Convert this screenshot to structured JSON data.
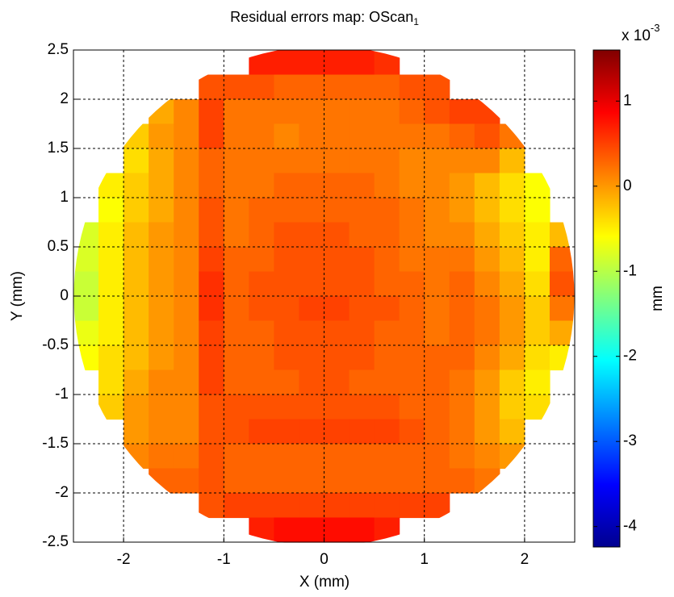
{
  "chart_data": {
    "type": "heatmap",
    "title": "Residual errors map: OScan",
    "title_subscript": "1",
    "xlabel": "X (mm)",
    "ylabel": "Y (mm)",
    "xlim": [
      -2.5,
      2.5
    ],
    "ylim": [
      -2.5,
      2.5
    ],
    "xticks": [
      -2,
      -1,
      0,
      1,
      2
    ],
    "yticks": [
      -2.5,
      -2,
      -1.5,
      -1,
      -0.5,
      0,
      0.5,
      1,
      1.5,
      2,
      2.5
    ],
    "grid": true,
    "colorbar": {
      "label": "mm",
      "multiplier": "x 10",
      "exponent": "-3",
      "clim": [
        -4.24,
        1.6
      ],
      "ticks": [
        -4,
        -3,
        -2,
        -1,
        0,
        1
      ],
      "colormap": "jet"
    },
    "z": [
      [
        null,
        null,
        null,
        null,
        null,
        null,
        null,
        0.7,
        0.7,
        0.7,
        0.7,
        0.7,
        0.6,
        null,
        null,
        null,
        null,
        null,
        null,
        null
      ],
      [
        null,
        null,
        null,
        null,
        null,
        0.4,
        0.4,
        0.4,
        0.3,
        0.3,
        0.3,
        0.3,
        0.3,
        0.4,
        0.4,
        null,
        null,
        null,
        null,
        null
      ],
      [
        null,
        null,
        null,
        -0.1,
        0.1,
        0.5,
        0.2,
        0.2,
        0.2,
        0.2,
        0.2,
        0.2,
        0.2,
        0.3,
        0.4,
        0.5,
        0.5,
        null,
        null,
        null
      ],
      [
        null,
        null,
        -0.3,
        0,
        0.1,
        0.5,
        0.2,
        0.2,
        0.1,
        0.2,
        0.2,
        0.2,
        0.2,
        0.2,
        0.2,
        0.3,
        0.4,
        0.2,
        null,
        null
      ],
      [
        null,
        null,
        -0.4,
        -0.1,
        0.1,
        0.3,
        0.2,
        0.2,
        0.2,
        0.2,
        0.2,
        0.2,
        0.2,
        0.1,
        0.1,
        0.1,
        0.1,
        -0.2,
        null,
        null
      ],
      [
        null,
        -0.5,
        -0.3,
        -0.1,
        0.1,
        0.3,
        0.2,
        0.2,
        0.3,
        0.3,
        0.3,
        0.3,
        0.2,
        0.1,
        0.1,
        0,
        -0.2,
        -0.4,
        -0.6,
        null
      ],
      [
        null,
        -0.6,
        -0.3,
        -0.1,
        0.1,
        0.4,
        0.2,
        0.3,
        0.3,
        0.3,
        0.3,
        0.3,
        0.3,
        0.2,
        0.1,
        0,
        -0.2,
        -0.4,
        -0.6,
        null
      ],
      [
        -0.8,
        -0.5,
        -0.2,
        0,
        0.1,
        0.4,
        0.2,
        0.3,
        0.4,
        0.4,
        0.4,
        0.3,
        0.3,
        0.2,
        0.1,
        0.1,
        -0.1,
        -0.3,
        -0.5,
        -0.2
      ],
      [
        -0.8,
        -0.5,
        -0.2,
        0,
        0.1,
        0.5,
        0.3,
        0.3,
        0.4,
        0.4,
        0.4,
        0.4,
        0.3,
        0.2,
        0.2,
        0.2,
        0,
        -0.2,
        -0.5,
        0.3
      ],
      [
        -0.9,
        -0.5,
        -0.2,
        0,
        0.1,
        0.6,
        0.3,
        0.4,
        0.4,
        0.4,
        0.4,
        0.4,
        0.3,
        0.3,
        0.2,
        0.3,
        0.1,
        -0.1,
        -0.4,
        0.4
      ],
      [
        -0.9,
        -0.5,
        -0.2,
        0,
        0.1,
        0.6,
        0.3,
        0.4,
        0.4,
        0.5,
        0.5,
        0.4,
        0.4,
        0.3,
        0.2,
        0.3,
        0.2,
        0,
        -0.3,
        0.2
      ],
      [
        -0.7,
        -0.5,
        -0.2,
        0,
        0.1,
        0.5,
        0.3,
        0.3,
        0.4,
        0.4,
        0.4,
        0.4,
        0.3,
        0.3,
        0.2,
        0.3,
        0.2,
        0,
        -0.3,
        -0.1
      ],
      [
        -0.6,
        -0.4,
        -0.2,
        0,
        0.1,
        0.5,
        0.3,
        0.3,
        0.4,
        0.4,
        0.4,
        0.4,
        0.3,
        0.3,
        0.3,
        0.3,
        0.1,
        -0.1,
        -0.4,
        -0.5
      ],
      [
        null,
        -0.4,
        -0.1,
        0.1,
        0.1,
        0.5,
        0.3,
        0.3,
        0.3,
        0.4,
        0.4,
        0.3,
        0.3,
        0.3,
        0.3,
        0.2,
        0,
        -0.3,
        -0.5,
        null
      ],
      [
        null,
        -0.3,
        0,
        0.1,
        0.1,
        0.4,
        0.4,
        0.4,
        0.4,
        0.4,
        0.4,
        0.4,
        0.4,
        0.3,
        0.3,
        0.2,
        0,
        -0.3,
        -0.4,
        null
      ],
      [
        null,
        null,
        0,
        0.1,
        0.1,
        0.4,
        0.4,
        0.5,
        0.5,
        0.5,
        0.5,
        0.5,
        0.5,
        0.4,
        0.3,
        0.2,
        0,
        -0.2,
        null,
        null
      ],
      [
        null,
        null,
        0.1,
        0.2,
        0.2,
        0.4,
        0.3,
        0.3,
        0.3,
        0.3,
        0.3,
        0.3,
        0.3,
        0.3,
        0.3,
        0.2,
        0.1,
        0,
        null,
        null
      ],
      [
        null,
        null,
        null,
        0.3,
        0.3,
        0.4,
        0.3,
        0.3,
        0.3,
        0.3,
        0.3,
        0.3,
        0.3,
        0.3,
        0.3,
        0.3,
        0.2,
        null,
        null,
        null
      ],
      [
        null,
        null,
        null,
        null,
        null,
        0.4,
        0.5,
        0.5,
        0.5,
        0.5,
        0.5,
        0.5,
        0.5,
        0.5,
        0.5,
        null,
        null,
        null,
        null,
        null
      ],
      [
        null,
        null,
        null,
        null,
        null,
        null,
        null,
        0.7,
        0.8,
        0.8,
        0.8,
        0.8,
        0.7,
        null,
        null,
        null,
        null,
        null,
        null,
        null
      ]
    ]
  }
}
